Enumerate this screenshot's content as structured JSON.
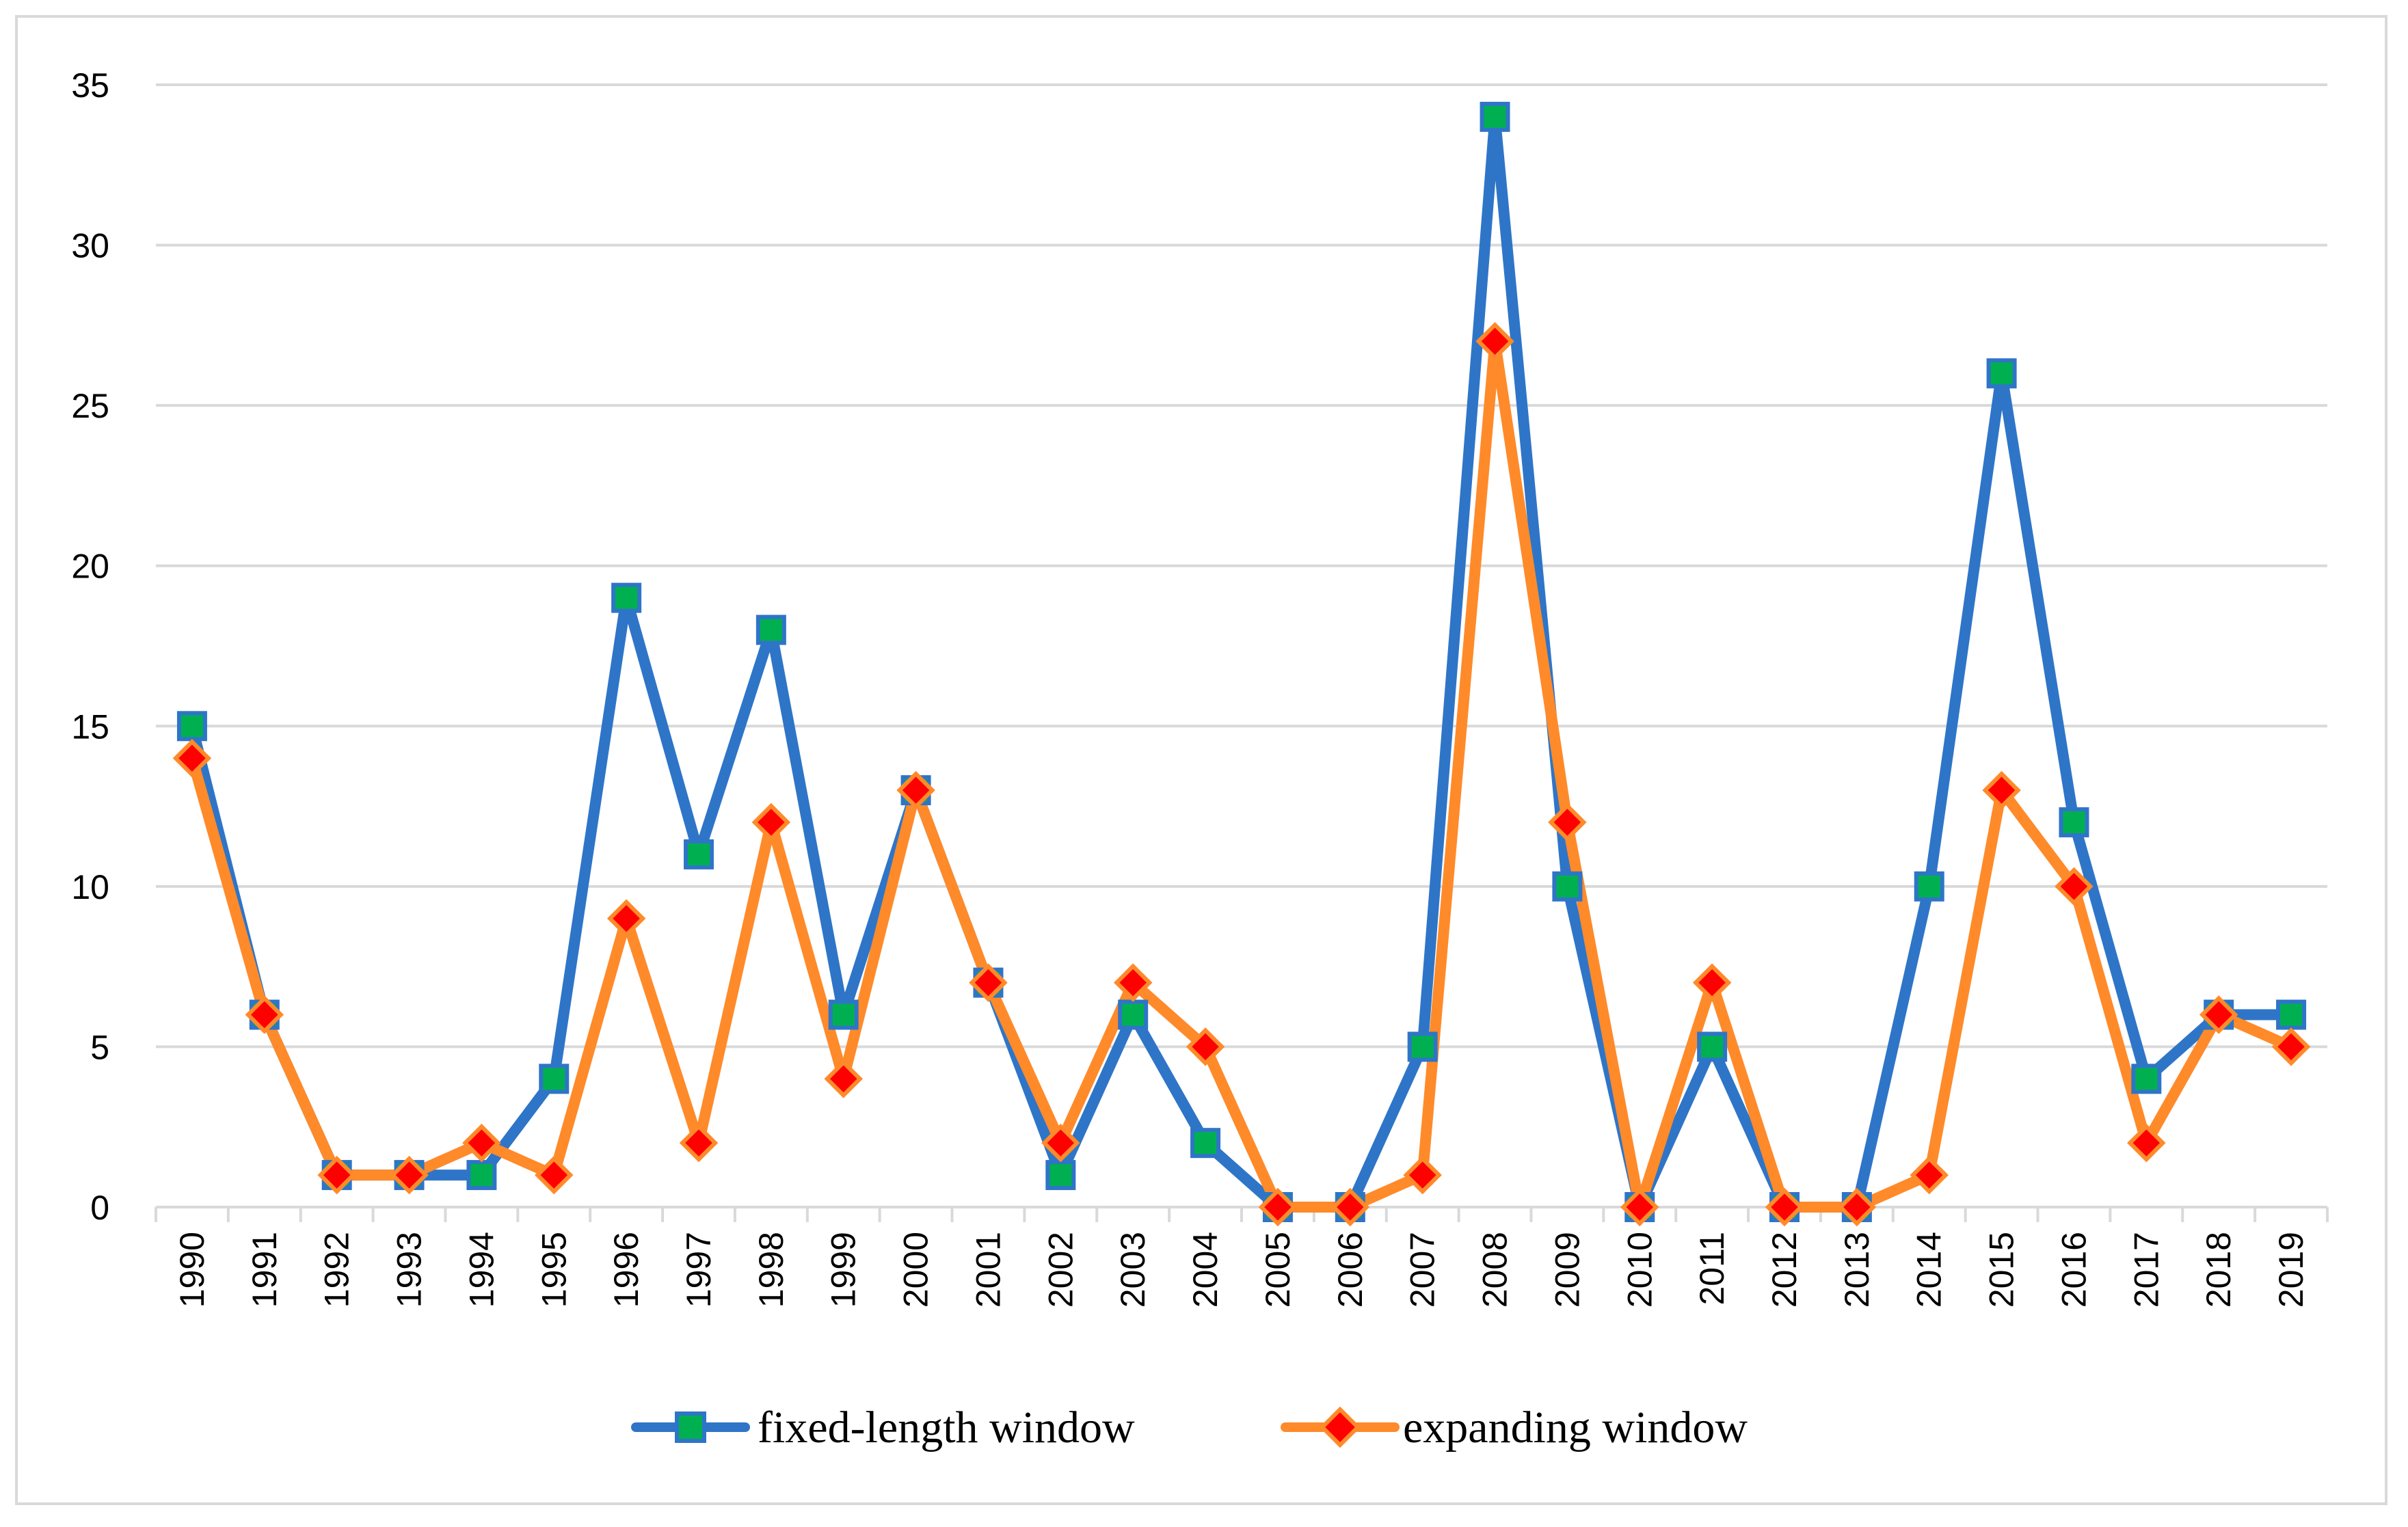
{
  "chart_data": {
    "type": "line",
    "title": "",
    "xlabel": "",
    "ylabel": "",
    "ylim": [
      0,
      35
    ],
    "yticks": [
      "0",
      "5",
      "10",
      "15",
      "20",
      "25",
      "30",
      "35"
    ],
    "grid": true,
    "legend_position": "bottom",
    "categories": [
      "1990",
      "1991",
      "1992",
      "1993",
      "1994",
      "1995",
      "1996",
      "1997",
      "1998",
      "1999",
      "2000",
      "2001",
      "2002",
      "2003",
      "2004",
      "2005",
      "2006",
      "2007",
      "2008",
      "2009",
      "2010",
      "2011",
      "2012",
      "2013",
      "2014",
      "2015",
      "2016",
      "2017",
      "2018",
      "2019"
    ],
    "series": [
      {
        "name": "fixed-length window",
        "line_color": "#2e75c8",
        "marker": "square",
        "marker_fill": "#00b050",
        "values": [
          15,
          6,
          1,
          1,
          1,
          4,
          19,
          11,
          18,
          6,
          13,
          7,
          1,
          6,
          2,
          0,
          0,
          5,
          34,
          10,
          0,
          5,
          0,
          0,
          10,
          26,
          12,
          4,
          6,
          6
        ]
      },
      {
        "name": "expanding window",
        "line_color": "#ff8a2a",
        "marker": "diamond",
        "marker_fill": "#ff0000",
        "values": [
          14,
          6,
          1,
          1,
          2,
          1,
          9,
          2,
          12,
          4,
          13,
          7,
          2,
          7,
          5,
          0,
          0,
          1,
          27,
          12,
          0,
          7,
          0,
          0,
          1,
          13,
          10,
          2,
          6,
          5
        ]
      }
    ]
  }
}
